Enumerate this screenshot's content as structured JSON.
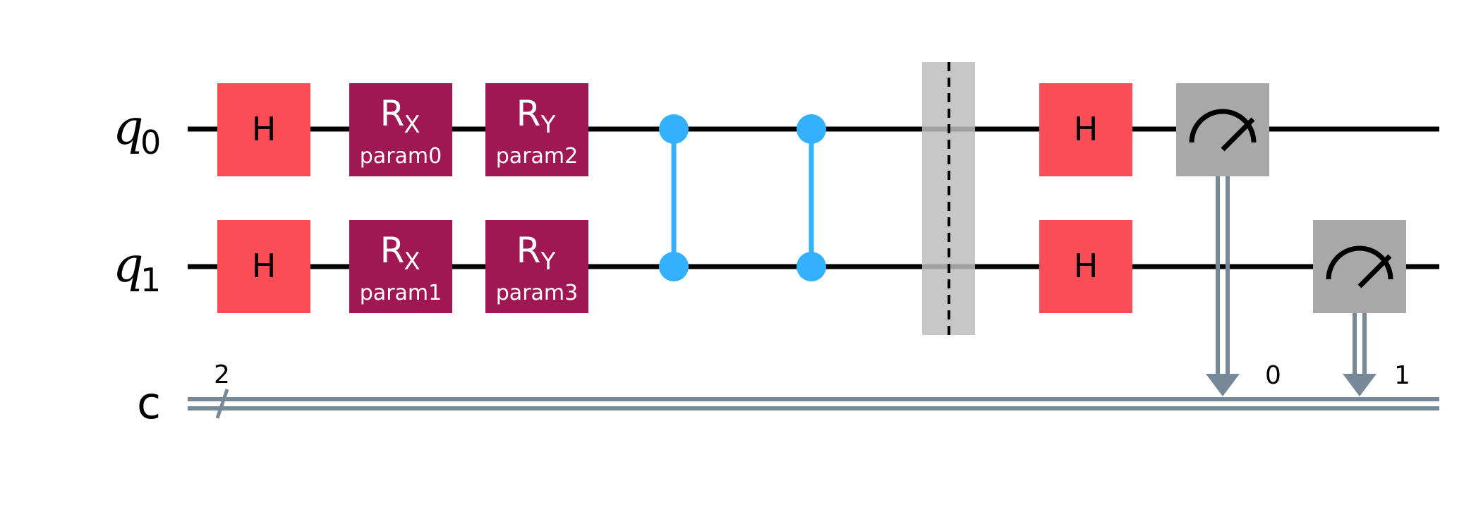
{
  "qubits": [
    {
      "name": "q",
      "index": "0"
    },
    {
      "name": "q",
      "index": "1"
    }
  ],
  "classical_register": {
    "name": "c",
    "size": "2"
  },
  "gates": [
    {
      "id": "h-q0-a",
      "type": "H",
      "label": "H",
      "param": "",
      "qubit": 0
    },
    {
      "id": "h-q1-a",
      "type": "H",
      "label": "H",
      "param": "",
      "qubit": 1
    },
    {
      "id": "rx-q0",
      "type": "RX",
      "label_main": "R",
      "label_sub": "X",
      "param": "param0",
      "qubit": 0
    },
    {
      "id": "rx-q1",
      "type": "RX",
      "label_main": "R",
      "label_sub": "X",
      "param": "param1",
      "qubit": 1
    },
    {
      "id": "ry-q0",
      "type": "RY",
      "label_main": "R",
      "label_sub": "Y",
      "param": "param2",
      "qubit": 0
    },
    {
      "id": "ry-q1",
      "type": "RY",
      "label_main": "R",
      "label_sub": "Y",
      "param": "param3",
      "qubit": 1
    },
    {
      "id": "cz-1",
      "type": "CZ",
      "qubits": [
        0,
        1
      ]
    },
    {
      "id": "cz-2",
      "type": "CZ",
      "qubits": [
        0,
        1
      ]
    },
    {
      "id": "barrier",
      "type": "barrier",
      "qubits": [
        0,
        1
      ]
    },
    {
      "id": "h-q0-b",
      "type": "H",
      "label": "H",
      "param": "",
      "qubit": 0
    },
    {
      "id": "h-q1-b",
      "type": "H",
      "label": "H",
      "param": "",
      "qubit": 1
    },
    {
      "id": "measure-q0",
      "type": "measure",
      "qubit": 0,
      "clbit": "0"
    },
    {
      "id": "measure-q1",
      "type": "measure",
      "qubit": 1,
      "clbit": "1"
    }
  ],
  "colors": {
    "hadamard": "#FA4D56",
    "rotation": "#9F1853",
    "controlled_z": "#33B1FF",
    "measure": "#A8A8A8",
    "barrier": "#C8C8C8",
    "classical_wire": "#778899",
    "wire": "#000000",
    "background": "#FFFFFF"
  }
}
